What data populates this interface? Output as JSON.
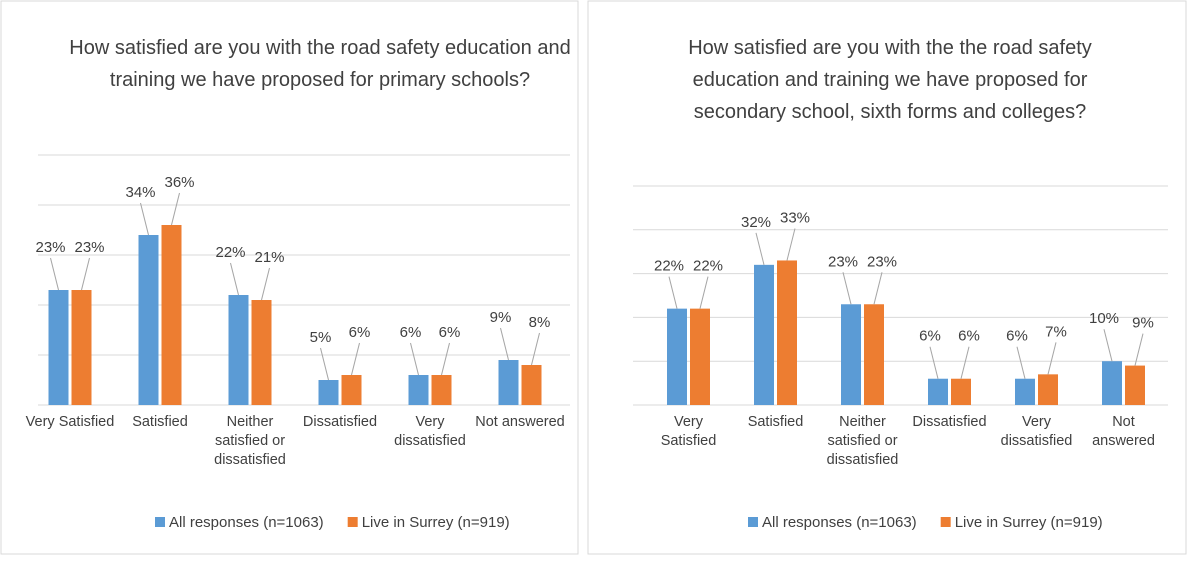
{
  "chart_data": [
    {
      "type": "bar",
      "title": "How satisfied are you with the road safety education and training we have proposed for primary schools?",
      "categories": [
        "Very Satisfied",
        "Satisfied",
        "Neither satisfied or dissatisfied",
        "Dissatisfied",
        "Very dissatisfied",
        "Not answered"
      ],
      "series": [
        {
          "name": "All responses (n=1063)",
          "color": "#5b9bd5",
          "values": [
            23,
            34,
            22,
            5,
            6,
            9
          ],
          "value_labels": [
            "23%",
            "34%",
            "22%",
            "5%",
            "6%",
            "9%"
          ]
        },
        {
          "name": "Live in Surrey (n=919)",
          "color": "#ed7d31",
          "values": [
            23,
            36,
            21,
            6,
            6,
            8
          ],
          "value_labels": [
            "23%",
            "36%",
            "21%",
            "6%",
            "6%",
            "8%"
          ]
        }
      ],
      "ylim": [
        0,
        50
      ],
      "yticks": [
        0,
        10,
        20,
        30,
        40,
        50
      ],
      "grid": true,
      "legend": "bottom"
    },
    {
      "type": "bar",
      "title": "How satisfied are you with the the road safety education and training we have proposed for secondary school, sixth forms and colleges?",
      "categories": [
        "Very Satisfied",
        "Satisfied",
        "Neither satisfied or dissatisfied",
        "Dissatisfied",
        "Very dissatisfied",
        "Not answered"
      ],
      "series": [
        {
          "name": "All responses (n=1063)",
          "color": "#5b9bd5",
          "values": [
            22,
            32,
            23,
            6,
            6,
            10
          ],
          "value_labels": [
            "22%",
            "32%",
            "23%",
            "6%",
            "6%",
            "10%"
          ]
        },
        {
          "name": "Live in Surrey (n=919)",
          "color": "#ed7d31",
          "values": [
            22,
            33,
            23,
            6,
            7,
            9
          ],
          "value_labels": [
            "22%",
            "33%",
            "23%",
            "6%",
            "7%",
            "9%"
          ]
        }
      ],
      "ylim": [
        0,
        50
      ],
      "yticks": [
        0,
        10,
        20,
        30,
        40,
        50
      ],
      "grid": true,
      "legend": "bottom"
    }
  ]
}
